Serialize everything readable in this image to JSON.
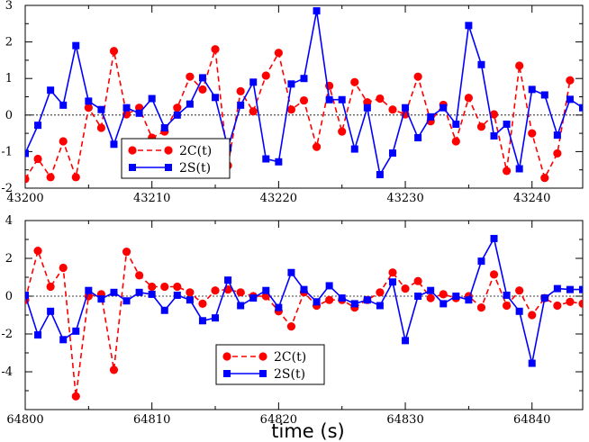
{
  "figure": {
    "xlabel": "time (s)"
  },
  "chart_data": [
    {
      "type": "line",
      "xlim": [
        43200,
        43244
      ],
      "ylim": [
        -2,
        3
      ],
      "xticks": [
        43200,
        43210,
        43220,
        43230,
        43240
      ],
      "yticks": [
        -2,
        -1,
        0,
        1,
        2,
        3
      ],
      "legend_position": "bottom-left",
      "grid": false,
      "series": [
        {
          "name": "2C(t)",
          "color": "#ff0000",
          "marker": "circle",
          "linestyle": "dashed",
          "x": [
            43200,
            43201,
            43202,
            43203,
            43204,
            43205,
            43206,
            43207,
            43208,
            43209,
            43210,
            43211,
            43212,
            43213,
            43214,
            43215,
            43216,
            43217,
            43218,
            43219,
            43220,
            43221,
            43222,
            43223,
            43224,
            43225,
            43226,
            43227,
            43228,
            43229,
            43230,
            43231,
            43232,
            43233,
            43234,
            43235,
            43236,
            43237,
            43238,
            43239,
            43240,
            43241,
            43242,
            43243
          ],
          "values": [
            -1.75,
            -1.2,
            -1.7,
            -0.72,
            -1.7,
            0.2,
            -0.35,
            1.75,
            0.02,
            0.2,
            -0.62,
            -0.45,
            0.2,
            1.05,
            0.7,
            1.8,
            -1.38,
            0.65,
            0.1,
            1.08,
            1.7,
            0.15,
            0.4,
            -0.87,
            0.8,
            -0.45,
            0.9,
            0.35,
            0.45,
            0.15,
            0.02,
            1.05,
            -0.17,
            0.28,
            -0.72,
            0.47,
            -0.32,
            0.02,
            -1.53,
            1.35,
            -0.5,
            -1.72,
            -1.05,
            0.95
          ]
        },
        {
          "name": "2S(t)",
          "color": "#0000ff",
          "marker": "square",
          "linestyle": "solid",
          "x": [
            43200,
            43201,
            43202,
            43203,
            43204,
            43205,
            43206,
            43207,
            43208,
            43209,
            43210,
            43211,
            43212,
            43213,
            43214,
            43215,
            43216,
            43217,
            43218,
            43219,
            43220,
            43221,
            43222,
            43223,
            43224,
            43225,
            43226,
            43227,
            43228,
            43229,
            43230,
            43231,
            43232,
            43233,
            43234,
            43235,
            43236,
            43237,
            43238,
            43239,
            43240,
            43241,
            43242,
            43243,
            43244
          ],
          "values": [
            -1.05,
            -0.28,
            0.68,
            0.27,
            1.9,
            0.38,
            0.15,
            -0.8,
            0.2,
            0.05,
            0.45,
            -0.35,
            0.0,
            0.3,
            1.02,
            0.48,
            -0.9,
            0.27,
            0.9,
            -1.2,
            -1.28,
            0.85,
            1.0,
            2.85,
            0.42,
            0.42,
            -0.93,
            0.2,
            -1.63,
            -1.04,
            0.2,
            -0.62,
            -0.05,
            0.2,
            -0.25,
            2.45,
            1.38,
            -0.57,
            -0.25,
            -1.47,
            0.7,
            0.55,
            -0.55,
            0.43,
            0.2
          ]
        }
      ]
    },
    {
      "type": "line",
      "xlim": [
        64800,
        64844
      ],
      "ylim": [
        -6,
        4
      ],
      "xticks": [
        64800,
        64810,
        64820,
        64830,
        64840
      ],
      "yticks": [
        -4,
        -2,
        0,
        2,
        4
      ],
      "legend_position": "bottom-left",
      "grid": false,
      "series": [
        {
          "name": "2C(t)",
          "color": "#ff0000",
          "marker": "circle",
          "linestyle": "dashed",
          "x": [
            64800,
            64801,
            64802,
            64803,
            64804,
            64805,
            64806,
            64807,
            64808,
            64809,
            64810,
            64811,
            64812,
            64813,
            64814,
            64815,
            64816,
            64817,
            64818,
            64819,
            64820,
            64821,
            64822,
            64823,
            64824,
            64825,
            64826,
            64827,
            64828,
            64829,
            64830,
            64831,
            64832,
            64833,
            64834,
            64835,
            64836,
            64837,
            64838,
            64839,
            64840,
            64841,
            64842,
            64843,
            64844
          ],
          "values": [
            -0.2,
            2.4,
            0.5,
            1.5,
            -5.3,
            0.0,
            0.1,
            -3.9,
            2.35,
            1.1,
            0.5,
            0.5,
            0.5,
            0.2,
            -0.4,
            0.3,
            0.35,
            0.2,
            0.0,
            0.0,
            -0.8,
            -1.6,
            0.2,
            -0.5,
            -0.2,
            -0.2,
            -0.6,
            -0.2,
            0.2,
            1.25,
            0.4,
            0.8,
            -0.1,
            0.1,
            -0.1,
            0.0,
            -0.6,
            1.15,
            -0.5,
            0.3,
            -1.0,
            -0.1,
            -0.5,
            -0.3,
            -0.4
          ]
        },
        {
          "name": "2S(t)",
          "color": "#0000ff",
          "marker": "square",
          "linestyle": "solid",
          "x": [
            64800,
            64801,
            64802,
            64803,
            64804,
            64805,
            64806,
            64807,
            64808,
            64809,
            64810,
            64811,
            64812,
            64813,
            64814,
            64815,
            64816,
            64817,
            64818,
            64819,
            64820,
            64821,
            64822,
            64823,
            64824,
            64825,
            64826,
            64827,
            64828,
            64829,
            64830,
            64831,
            64832,
            64833,
            64834,
            64835,
            64836,
            64837,
            64838,
            64839,
            64840,
            64841,
            64842,
            64843,
            64844
          ],
          "values": [
            0.05,
            -2.05,
            -0.8,
            -2.3,
            -1.85,
            0.3,
            -0.15,
            0.2,
            -0.25,
            0.2,
            0.1,
            -0.75,
            0.05,
            -0.2,
            -1.3,
            -1.15,
            0.85,
            -0.5,
            -0.1,
            0.3,
            -0.6,
            1.25,
            0.35,
            -0.3,
            0.55,
            -0.1,
            -0.4,
            -0.2,
            -0.5,
            0.75,
            -2.35,
            0.0,
            0.3,
            -0.4,
            0.0,
            -0.2,
            1.85,
            3.05,
            0.05,
            -0.8,
            -3.55,
            -0.1,
            0.4,
            0.35,
            0.35
          ]
        }
      ]
    }
  ]
}
